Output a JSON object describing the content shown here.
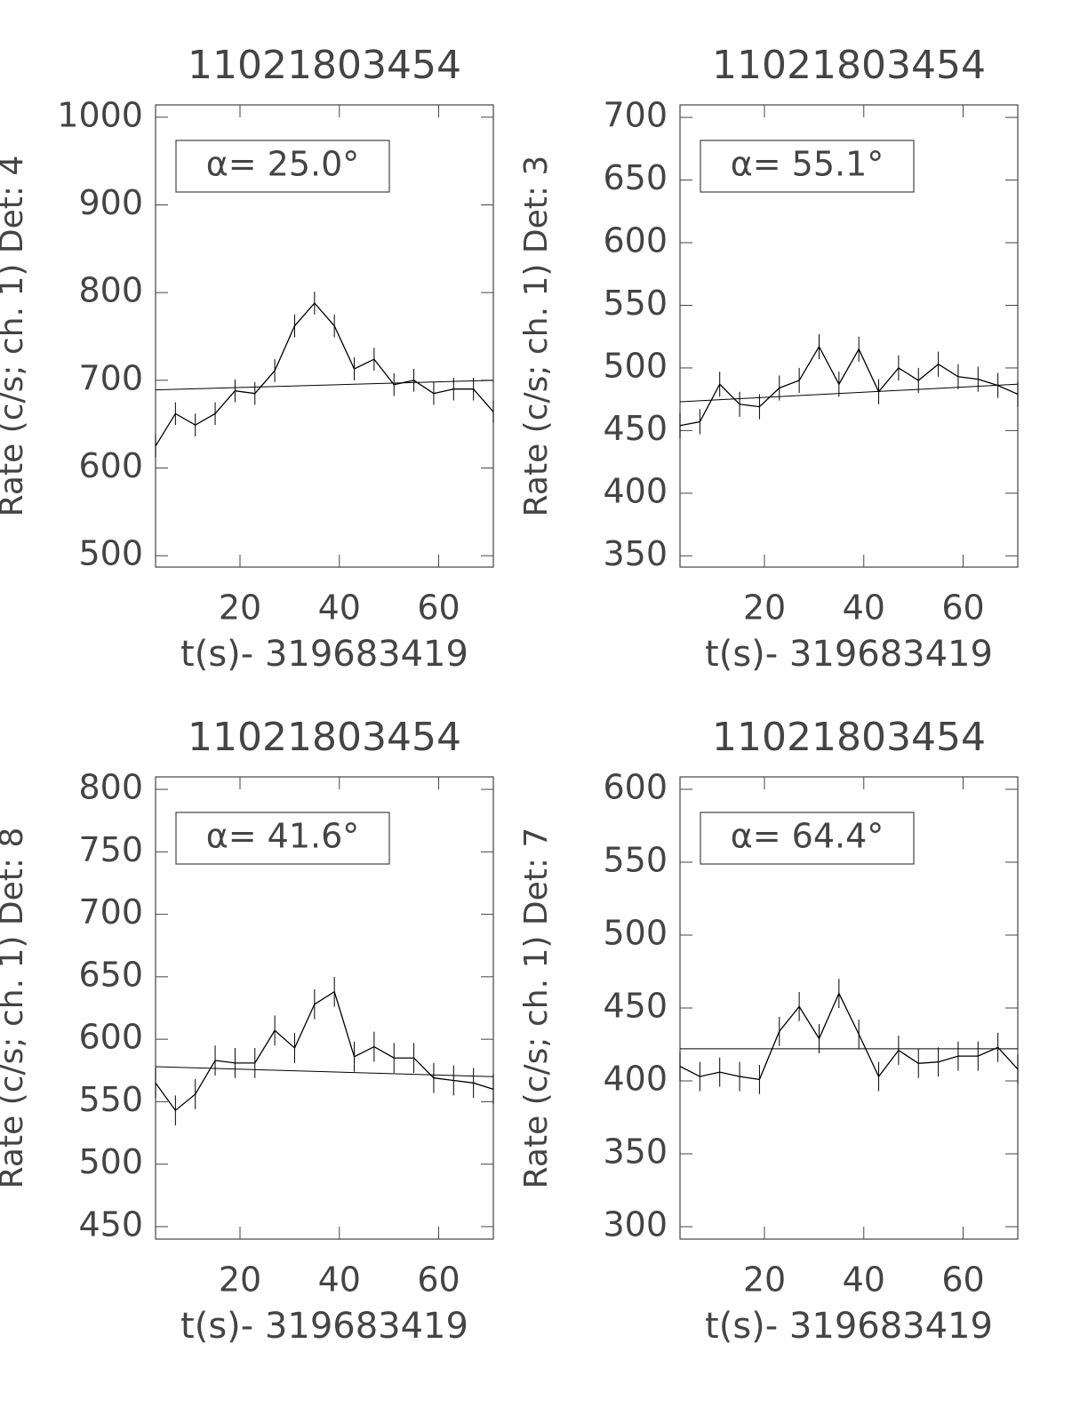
{
  "chart_data": [
    {
      "type": "line",
      "title": "11021803454",
      "x_label": "t(s)- 319683419",
      "y_label": "Rate (c/s; ch. 1) Det: 4",
      "annotation": "α= 25.0°",
      "x": [
        3,
        7,
        11,
        15,
        19,
        23,
        27,
        31,
        35,
        39,
        43,
        47,
        51,
        55,
        59,
        63,
        67,
        71
      ],
      "series": [
        {
          "color": "#000000",
          "values": [
            625,
            662,
            649,
            662,
            688,
            685,
            711,
            762,
            788,
            762,
            713,
            724,
            695,
            700,
            685,
            690,
            690,
            664
          ],
          "errors": [
            13,
            13,
            13,
            13,
            13,
            13,
            13,
            13,
            13,
            13,
            13,
            13,
            13,
            13,
            13,
            13,
            13,
            13
          ]
        }
      ],
      "model": {
        "color": "#000000",
        "x": [
          3,
          71
        ],
        "values": [
          689,
          700
        ]
      },
      "xlim": [
        3,
        71
      ],
      "ylim": [
        487,
        1014
      ],
      "xticks": [
        20,
        40,
        60
      ],
      "yticks": [
        500,
        600,
        700,
        800,
        900,
        1000
      ]
    },
    {
      "type": "line",
      "title": "11021803454",
      "x_label": "t(s)- 319683419",
      "y_label": "Rate (c/s; ch. 1) Det: 3",
      "annotation": "α= 55.1°",
      "x": [
        3,
        7,
        11,
        15,
        19,
        23,
        27,
        31,
        35,
        39,
        43,
        47,
        51,
        55,
        59,
        63,
        67,
        71
      ],
      "series": [
        {
          "color": "#000000",
          "values": [
            454,
            457,
            487,
            471,
            469,
            484,
            490,
            517,
            487,
            515,
            481,
            500,
            490,
            503,
            493,
            491,
            486,
            479
          ],
          "errors": [
            10,
            10,
            10,
            10,
            10,
            10,
            10,
            10,
            10,
            10,
            10,
            10,
            10,
            10,
            10,
            10,
            10,
            10
          ]
        }
      ],
      "model": {
        "color": "#000000",
        "x": [
          3,
          71
        ],
        "values": [
          473,
          487
        ]
      },
      "xlim": [
        3,
        71
      ],
      "ylim": [
        341,
        710
      ],
      "xticks": [
        20,
        40,
        60
      ],
      "yticks": [
        350,
        400,
        450,
        500,
        550,
        600,
        650,
        700
      ]
    },
    {
      "type": "line",
      "title": "11021803454",
      "x_label": "t(s)- 319683419",
      "y_label": "Rate (c/s; ch. 1) Det: 8",
      "annotation": "α= 41.6°",
      "x": [
        3,
        7,
        11,
        15,
        19,
        23,
        27,
        31,
        35,
        39,
        43,
        47,
        51,
        55,
        59,
        63,
        67,
        71
      ],
      "series": [
        {
          "color": "#000000",
          "values": [
            565,
            543,
            556,
            583,
            581,
            581,
            607,
            593,
            628,
            638,
            586,
            594,
            585,
            585,
            569,
            567,
            565,
            560
          ],
          "errors": [
            12,
            12,
            12,
            12,
            12,
            12,
            12,
            12,
            12,
            12,
            12,
            12,
            12,
            12,
            12,
            12,
            12,
            12
          ]
        }
      ],
      "model": {
        "color": "#000000",
        "x": [
          3,
          71
        ],
        "values": [
          578,
          570
        ]
      },
      "xlim": [
        3,
        71
      ],
      "ylim": [
        440,
        810
      ],
      "xticks": [
        20,
        40,
        60
      ],
      "yticks": [
        450,
        500,
        550,
        600,
        650,
        700,
        750,
        800
      ]
    },
    {
      "type": "line",
      "title": "11021803454",
      "x_label": "t(s)- 319683419",
      "y_label": "Rate (c/s; ch. 1) Det: 7",
      "annotation": "α= 64.4°",
      "x": [
        3,
        7,
        11,
        15,
        19,
        23,
        27,
        31,
        35,
        39,
        43,
        47,
        51,
        55,
        59,
        63,
        67,
        71
      ],
      "series": [
        {
          "color": "#000000",
          "values": [
            410,
            403,
            406,
            403,
            401,
            434,
            451,
            429,
            460,
            432,
            403,
            421,
            412,
            413,
            417,
            417,
            423,
            408
          ],
          "errors": [
            10,
            10,
            10,
            10,
            10,
            10,
            10,
            10,
            10,
            10,
            10,
            10,
            10,
            10,
            10,
            10,
            10,
            10
          ]
        }
      ],
      "model": {
        "color": "#000000",
        "x": [
          3,
          71
        ],
        "values": [
          422,
          422
        ]
      },
      "xlim": [
        3,
        71
      ],
      "ylim": [
        291.5,
        608.5
      ],
      "xticks": [
        20,
        40,
        60
      ],
      "yticks": [
        300,
        350,
        400,
        450,
        500,
        550,
        600
      ]
    }
  ]
}
